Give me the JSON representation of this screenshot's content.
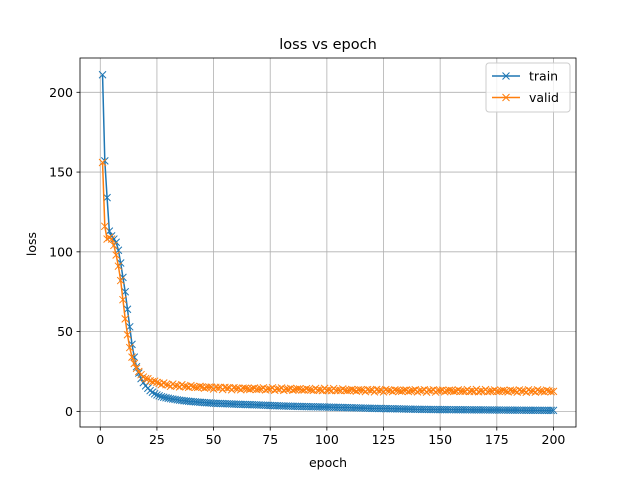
{
  "chart_data": {
    "type": "line",
    "title": "loss vs epoch",
    "xlabel": "epoch",
    "ylabel": "loss",
    "xlim": [
      -8.95,
      209.95
    ],
    "ylim": [
      -9.8,
      221.5
    ],
    "xticks": [
      0,
      25,
      50,
      75,
      100,
      125,
      150,
      175,
      200
    ],
    "yticks": [
      0,
      50,
      100,
      150,
      200
    ],
    "grid": true,
    "legend_position": "top-right",
    "marker": "x",
    "series": [
      {
        "name": "train",
        "color": "#1f77b4",
        "anchors": [
          [
            1,
            211
          ],
          [
            2,
            157
          ],
          [
            3,
            134
          ],
          [
            4,
            113
          ],
          [
            5,
            110
          ],
          [
            6,
            108
          ],
          [
            7,
            106
          ],
          [
            8,
            101
          ],
          [
            9,
            93
          ],
          [
            10,
            84
          ],
          [
            11,
            75
          ],
          [
            12,
            64
          ],
          [
            13,
            53
          ],
          [
            14,
            42
          ],
          [
            15,
            34
          ],
          [
            16,
            28
          ],
          [
            17,
            24
          ],
          [
            18,
            20.5
          ],
          [
            19,
            18
          ],
          [
            20,
            16
          ],
          [
            21,
            14.5
          ],
          [
            22,
            13
          ],
          [
            23,
            12
          ],
          [
            24,
            11
          ],
          [
            25,
            10.3
          ],
          [
            27,
            9.2
          ],
          [
            30,
            8.2
          ],
          [
            35,
            7
          ],
          [
            40,
            6.2
          ],
          [
            45,
            5.6
          ],
          [
            50,
            5.1
          ],
          [
            60,
            4.5
          ],
          [
            70,
            4
          ],
          [
            80,
            3.4
          ],
          [
            90,
            3
          ],
          [
            100,
            2.7
          ],
          [
            110,
            2.3
          ],
          [
            120,
            1.9
          ],
          [
            130,
            1.6
          ],
          [
            140,
            1.3
          ],
          [
            150,
            1.1
          ],
          [
            160,
            1
          ],
          [
            170,
            0.9
          ],
          [
            180,
            0.8
          ],
          [
            190,
            0.7
          ],
          [
            200,
            0.6
          ]
        ]
      },
      {
        "name": "valid",
        "color": "#ff7f0e",
        "anchors": [
          [
            1,
            156
          ],
          [
            2,
            116
          ],
          [
            3,
            108
          ],
          [
            4,
            109
          ],
          [
            5,
            108
          ],
          [
            6,
            104
          ],
          [
            7,
            98
          ],
          [
            8,
            91
          ],
          [
            9,
            82
          ],
          [
            10,
            70
          ],
          [
            11,
            58
          ],
          [
            12,
            48
          ],
          [
            13,
            40
          ],
          [
            14,
            34
          ],
          [
            15,
            30
          ],
          [
            16,
            27
          ],
          [
            17,
            25
          ],
          [
            18,
            23
          ],
          [
            19,
            21.5
          ],
          [
            20,
            20.5
          ],
          [
            22,
            19.5
          ],
          [
            25,
            18
          ],
          [
            30,
            16.5
          ],
          [
            40,
            15.5
          ],
          [
            50,
            14.8
          ],
          [
            60,
            14.3
          ],
          [
            75,
            14
          ],
          [
            100,
            13.5
          ],
          [
            125,
            13
          ],
          [
            150,
            12.9
          ],
          [
            175,
            12.8
          ],
          [
            200,
            12.7
          ]
        ],
        "noise_amplitude": 0.9
      }
    ]
  }
}
